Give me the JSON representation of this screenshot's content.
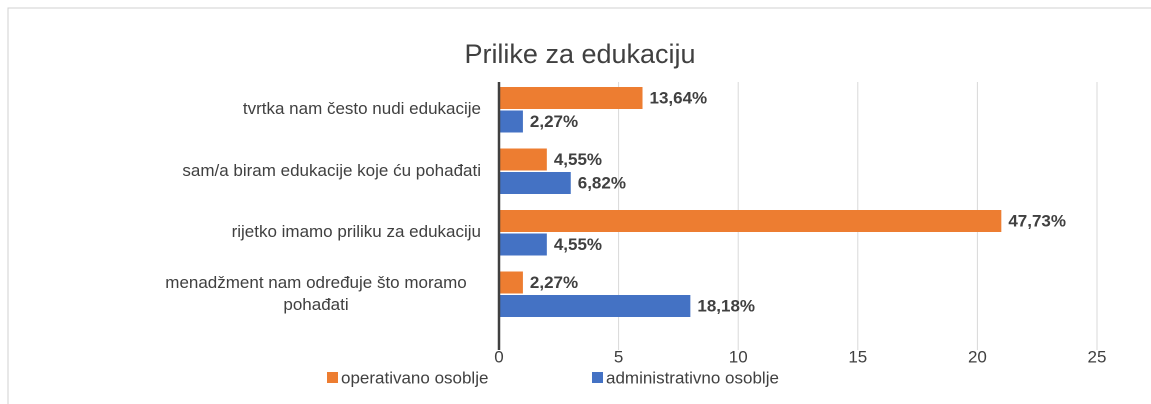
{
  "chart_data": {
    "type": "barh",
    "title": "Prilike za edukaciju",
    "categories": [
      "tvrtka nam često nudi edukacije",
      "sam/a biram edukacije koje ću pohađati",
      "rijetko imamo priliku za edukaciju",
      "menadžment nam određuje što moramo pohađati"
    ],
    "series": [
      {
        "name": "operativano osoblje",
        "color": "#ed7d31",
        "values": [
          6,
          2,
          21,
          1
        ],
        "value_labels": [
          "13,64%",
          "4,55%",
          "47,73%",
          "2,27%"
        ]
      },
      {
        "name": "administrativno osoblje",
        "color": "#4472c4",
        "values": [
          1,
          3,
          2,
          8
        ],
        "value_labels": [
          "2,27%",
          "6,82%",
          "4,55%",
          "18,18%"
        ]
      }
    ],
    "xlim": [
      0,
      25
    ],
    "xticks": [
      0,
      5,
      10,
      15,
      20,
      25
    ],
    "grid": true,
    "legend": "bottom"
  }
}
